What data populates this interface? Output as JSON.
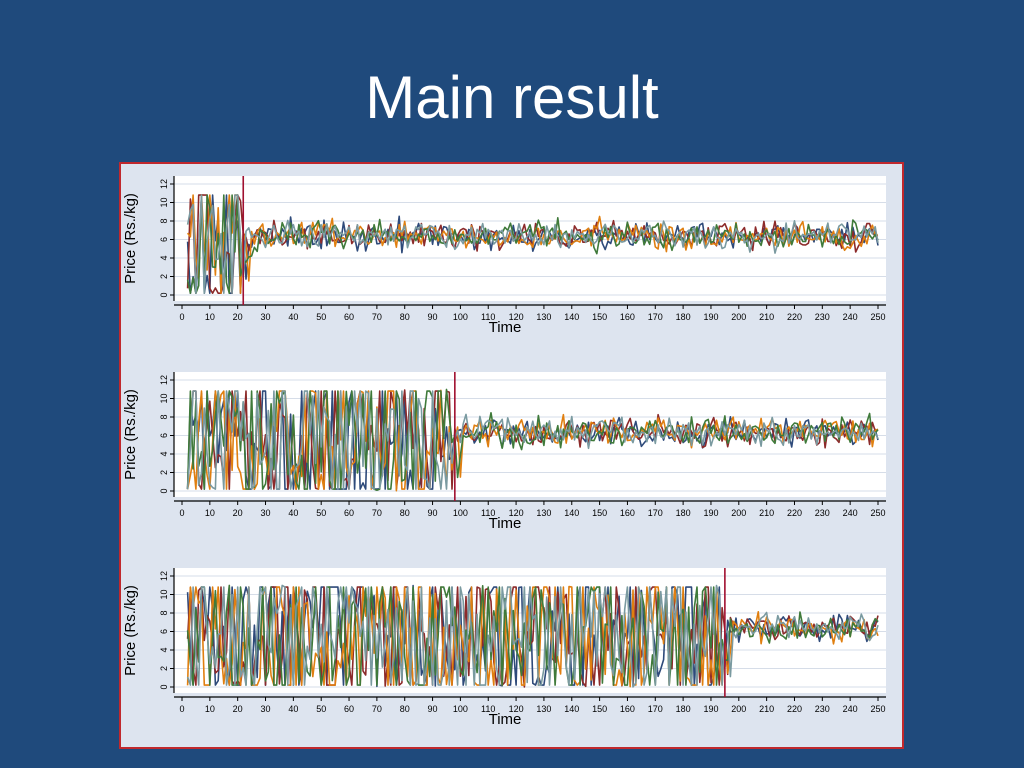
{
  "slide": {
    "title": "Main result"
  },
  "colors": {
    "background": "#1f4a7c",
    "panel": "#dde4ef",
    "border": "#c0282d",
    "marker_line": "#a01030",
    "series": [
      "#2e4a7a",
      "#8c2a2a",
      "#e07f10",
      "#3f7a3a",
      "#7a9aa0"
    ]
  },
  "chart_data": [
    {
      "type": "line",
      "xlabel": "Time",
      "ylabel": "Price (Rs./kg)",
      "xlim": [
        0,
        250
      ],
      "ylim": [
        0,
        12
      ],
      "xticks": [
        "0",
        "10",
        "20",
        "30",
        "40",
        "50",
        "60",
        "70",
        "80",
        "90",
        "100",
        "110",
        "120",
        "130",
        "140",
        "150",
        "160",
        "170",
        "180",
        "190",
        "200",
        "210",
        "220",
        "230",
        "240",
        "250"
      ],
      "yticks": [
        "0",
        "2",
        "4",
        "6",
        "8",
        "10",
        "12"
      ],
      "marker_x": 22,
      "convergence_time": 22,
      "early_range": [
        0,
        11
      ],
      "late_mean": 6.4,
      "late_spread": 1.5,
      "series_count": 5,
      "grid": true
    },
    {
      "type": "line",
      "xlabel": "Time",
      "ylabel": "Price (Rs./kg)",
      "xlim": [
        0,
        250
      ],
      "ylim": [
        0,
        12
      ],
      "xticks": [
        "0",
        "10",
        "20",
        "30",
        "40",
        "50",
        "60",
        "70",
        "80",
        "90",
        "100",
        "110",
        "120",
        "130",
        "140",
        "150",
        "160",
        "170",
        "180",
        "190",
        "200",
        "210",
        "220",
        "230",
        "240",
        "250"
      ],
      "yticks": [
        "0",
        "2",
        "4",
        "6",
        "8",
        "10",
        "12"
      ],
      "marker_x": 98,
      "convergence_time": 98,
      "early_range": [
        0,
        11
      ],
      "late_mean": 6.4,
      "late_spread": 1.5,
      "series_count": 5,
      "grid": true
    },
    {
      "type": "line",
      "xlabel": "Time",
      "ylabel": "Price (Rs./kg)",
      "xlim": [
        0,
        250
      ],
      "ylim": [
        0,
        12
      ],
      "xticks": [
        "0",
        "10",
        "20",
        "30",
        "40",
        "50",
        "60",
        "70",
        "80",
        "90",
        "100",
        "110",
        "120",
        "130",
        "140",
        "150",
        "160",
        "170",
        "180",
        "190",
        "200",
        "210",
        "220",
        "230",
        "240",
        "250"
      ],
      "yticks": [
        "0",
        "2",
        "4",
        "6",
        "8",
        "10",
        "12"
      ],
      "marker_x": 195,
      "convergence_time": 195,
      "early_range": [
        0,
        11
      ],
      "late_mean": 6.4,
      "late_spread": 1.5,
      "series_count": 5,
      "grid": true
    }
  ]
}
